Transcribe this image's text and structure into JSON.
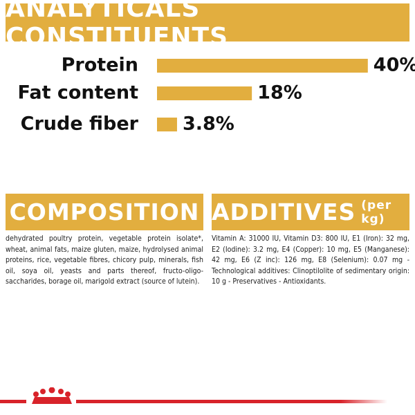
{
  "chart_data": {
    "type": "bar",
    "title": "ANALYTICALS CONSTITUENTS",
    "categories": [
      "Protein",
      "Fat content",
      "Crude fiber"
    ],
    "values": [
      40,
      18,
      3.8
    ],
    "value_labels": [
      "40%",
      "18%",
      "3.8%"
    ],
    "color": "#e2ae3f"
  },
  "composition": {
    "title": "COMPOSITION",
    "text": "dehydrated poultry protein, vegetable protein isolate*, wheat, animal fats, maize gluten, maize, hydrolysed animal proteins, rice, vegetable fibres, chicory pulp, minerals, fish oil, soya oil, yeasts and parts thereof, fructo-oligo-saccharides, borage oil, marigold extract (source of lutein)."
  },
  "additives": {
    "title": "ADDITIVES",
    "unit": "(per kg)",
    "text": "Vitamin A: 31000 IU, Vitamin D3: 800 IU, E1 (Iron): 32 mg, E2 (Iodine): 3.2 mg, E4 (Copper): 10 mg, E5 (Manganese): 42 mg, E6 (Z inc): 126 mg, E8 (Selenium): 0.07 mg -Technological additives: Clinoptilolite of sedimentary origin: 10 g - Preservatives - Antioxidants."
  }
}
